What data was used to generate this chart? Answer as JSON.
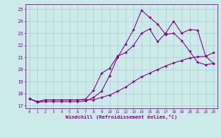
{
  "xlabel": "Windchill (Refroidissement éolien,°C)",
  "bg_color": "#cceaea",
  "line_color": "#880088",
  "grid_color": "#aacccc",
  "xlim": [
    -0.5,
    23.5
  ],
  "ylim": [
    16.8,
    25.4
  ],
  "yticks": [
    17,
    18,
    19,
    20,
    21,
    22,
    23,
    24,
    25
  ],
  "xticks": [
    0,
    1,
    2,
    3,
    4,
    5,
    6,
    7,
    8,
    9,
    10,
    11,
    12,
    13,
    14,
    15,
    16,
    17,
    18,
    19,
    20,
    21,
    22,
    23
  ],
  "line1_x": [
    0,
    1,
    2,
    3,
    4,
    5,
    6,
    7,
    8,
    9,
    10,
    11,
    12,
    13,
    14,
    15,
    16,
    17,
    18,
    19,
    20,
    21,
    22,
    23
  ],
  "line1_y": [
    17.6,
    17.3,
    17.35,
    17.35,
    17.35,
    17.35,
    17.35,
    17.4,
    17.7,
    18.2,
    19.5,
    21.0,
    22.1,
    23.3,
    24.9,
    24.3,
    23.75,
    22.9,
    23.0,
    22.4,
    21.5,
    20.6,
    20.4,
    20.5
  ],
  "line2_x": [
    0,
    1,
    2,
    3,
    4,
    5,
    6,
    7,
    8,
    9,
    10,
    11,
    12,
    13,
    14,
    15,
    16,
    17,
    18,
    19,
    20,
    21,
    22,
    23
  ],
  "line2_y": [
    17.6,
    17.35,
    17.5,
    17.5,
    17.5,
    17.5,
    17.5,
    17.55,
    18.3,
    19.7,
    20.1,
    21.1,
    21.4,
    22.0,
    23.0,
    23.35,
    22.3,
    23.0,
    24.0,
    23.0,
    23.3,
    23.25,
    21.1,
    21.4
  ],
  "line3_x": [
    0,
    1,
    2,
    3,
    4,
    5,
    6,
    7,
    8,
    9,
    10,
    11,
    12,
    13,
    14,
    15,
    16,
    17,
    18,
    19,
    20,
    21,
    22,
    23
  ],
  "line3_y": [
    17.6,
    17.35,
    17.5,
    17.5,
    17.5,
    17.5,
    17.5,
    17.5,
    17.5,
    17.7,
    17.9,
    18.2,
    18.55,
    19.0,
    19.4,
    19.7,
    20.0,
    20.3,
    20.55,
    20.75,
    20.95,
    21.05,
    21.1,
    20.5
  ]
}
